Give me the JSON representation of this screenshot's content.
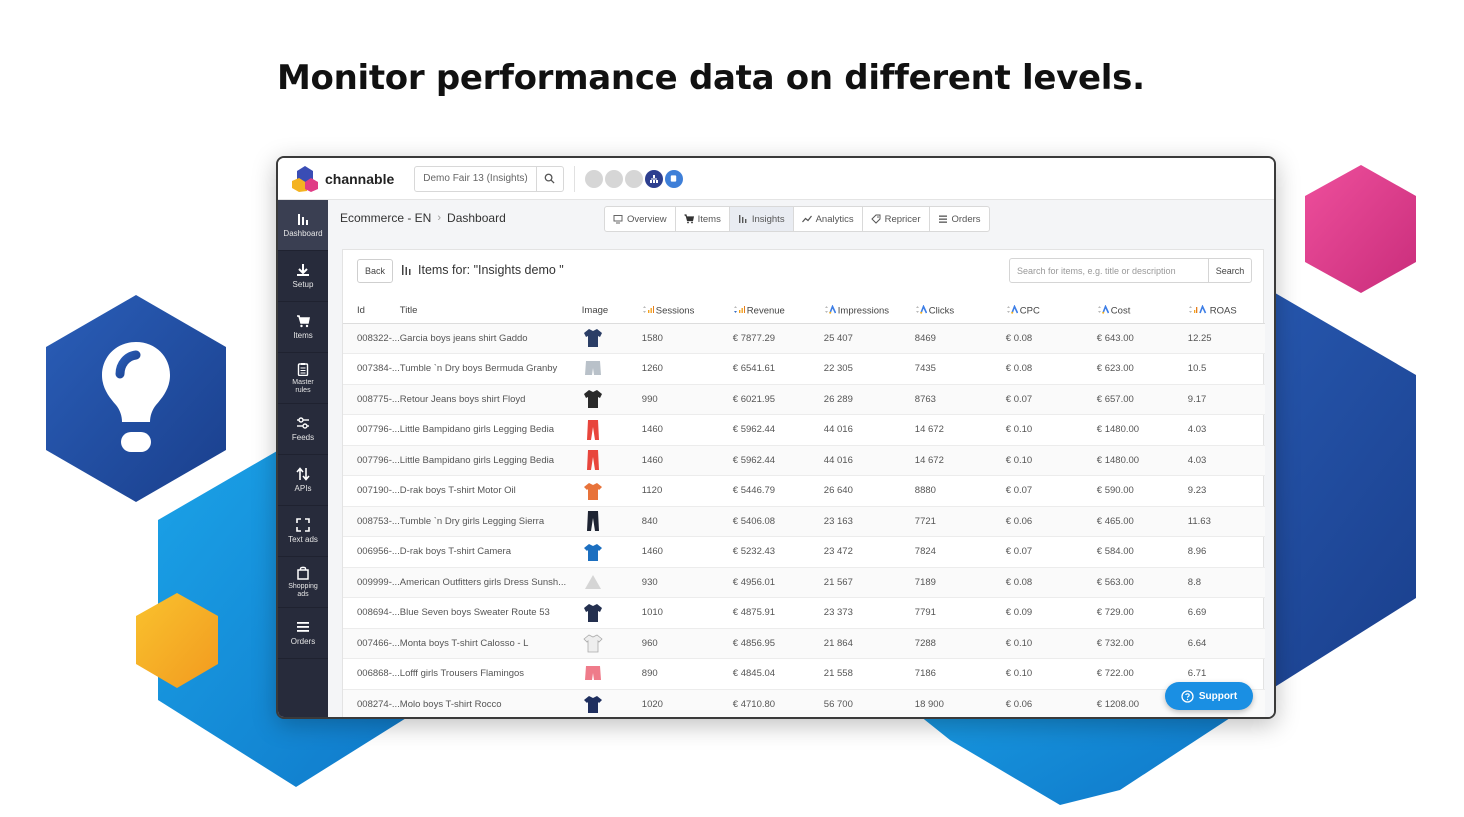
{
  "headline": "Monitor performance data on different levels.",
  "app": {
    "logo_text": "channable",
    "project_name": "Demo Fair 13 (Insights)"
  },
  "sidebar": {
    "items": [
      {
        "label": "Dashboard",
        "icon": "bar-chart-icon"
      },
      {
        "label": "Setup",
        "icon": "download-icon"
      },
      {
        "label": "Items",
        "icon": "cart-icon"
      },
      {
        "label": "Master rules",
        "icon": "clipboard-icon"
      },
      {
        "label": "Feeds",
        "icon": "sliders-icon"
      },
      {
        "label": "APIs",
        "icon": "arrows-updown-icon"
      },
      {
        "label": "Text ads",
        "icon": "expand-icon"
      },
      {
        "label": "Shopping ads",
        "icon": "bag-icon"
      },
      {
        "label": "Orders",
        "icon": "list-icon"
      }
    ]
  },
  "breadcrumb": {
    "project": "Ecommerce - EN",
    "page": "Dashboard"
  },
  "tabs": [
    "Overview",
    "Items",
    "Insights",
    "Analytics",
    "Repricer",
    "Orders"
  ],
  "active_tab": "Insights",
  "card": {
    "back_label": "Back",
    "title": "Items for: \"Insights demo \"",
    "search_placeholder": "Search for items, e.g. title or description",
    "search_label": "Search"
  },
  "table": {
    "headers": [
      "Id",
      "Title",
      "Image",
      "Sessions",
      "Revenue",
      "Impressions",
      "Clicks",
      "CPC",
      "Cost",
      "ROAS"
    ],
    "rows": [
      {
        "id": "008322-...",
        "title": "Garcia boys jeans shirt Gaddo",
        "image": "jacket",
        "color": "#2b3e66",
        "sessions": "1580",
        "revenue": "€ 7877.29",
        "impressions": "25 407",
        "clicks": "8469",
        "cpc": "€ 0.08",
        "cost": "€ 643.00",
        "roas": "12.25"
      },
      {
        "id": "007384-...",
        "title": "Tumble `n Dry boys Bermuda Granby",
        "image": "shorts",
        "color": "#b9c1c9",
        "sessions": "1260",
        "revenue": "€ 6541.61",
        "impressions": "22 305",
        "clicks": "7435",
        "cpc": "€ 0.08",
        "cost": "€ 623.00",
        "roas": "10.5"
      },
      {
        "id": "008775-...",
        "title": "Retour Jeans boys shirt Floyd",
        "image": "jacket",
        "color": "#2a2a2a",
        "sessions": "990",
        "revenue": "€ 6021.95",
        "impressions": "26 289",
        "clicks": "8763",
        "cpc": "€ 0.07",
        "cost": "€ 657.00",
        "roas": "9.17"
      },
      {
        "id": "007796-...",
        "title": "Little Bampidano girls Legging Bedia",
        "image": "trousers",
        "color": "#e8453c",
        "sessions": "1460",
        "revenue": "€ 5962.44",
        "impressions": "44 016",
        "clicks": "14 672",
        "cpc": "€ 0.10",
        "cost": "€ 1480.00",
        "roas": "4.03"
      },
      {
        "id": "007796-...",
        "title": "Little Bampidano girls Legging Bedia",
        "image": "trousers",
        "color": "#e8453c",
        "sessions": "1460",
        "revenue": "€ 5962.44",
        "impressions": "44 016",
        "clicks": "14 672",
        "cpc": "€ 0.10",
        "cost": "€ 1480.00",
        "roas": "4.03"
      },
      {
        "id": "007190-...",
        "title": "D-rak boys T-shirt Motor Oil",
        "image": "tshirt",
        "color": "#e8733a",
        "sessions": "1120",
        "revenue": "€ 5446.79",
        "impressions": "26 640",
        "clicks": "8880",
        "cpc": "€ 0.07",
        "cost": "€ 590.00",
        "roas": "9.23"
      },
      {
        "id": "008753-...",
        "title": "Tumble `n Dry girls Legging Sierra",
        "image": "trousers",
        "color": "#1e2433",
        "sessions": "840",
        "revenue": "€ 5406.08",
        "impressions": "23 163",
        "clicks": "7721",
        "cpc": "€ 0.06",
        "cost": "€ 465.00",
        "roas": "11.63"
      },
      {
        "id": "006956-...",
        "title": "D-rak boys T-shirt Camera",
        "image": "tshirt",
        "color": "#1c6fc0",
        "sessions": "1460",
        "revenue": "€ 5232.43",
        "impressions": "23 472",
        "clicks": "7824",
        "cpc": "€ 0.07",
        "cost": "€ 584.00",
        "roas": "8.96"
      },
      {
        "id": "009999-...",
        "title": "American Outfitters girls Dress Sunsh...",
        "image": "placeholder",
        "color": "#d5d5d5",
        "sessions": "930",
        "revenue": "€ 4956.01",
        "impressions": "21 567",
        "clicks": "7189",
        "cpc": "€ 0.08",
        "cost": "€ 563.00",
        "roas": "8.8"
      },
      {
        "id": "008694-...",
        "title": "Blue Seven boys Sweater Route 53",
        "image": "jacket",
        "color": "#24304f",
        "sessions": "1010",
        "revenue": "€ 4875.91",
        "impressions": "23 373",
        "clicks": "7791",
        "cpc": "€ 0.09",
        "cost": "€ 729.00",
        "roas": "6.69"
      },
      {
        "id": "007466-...",
        "title": "Monta boys T-shirt Calosso - L",
        "image": "tshirt",
        "color": "#eeeeee",
        "sessions": "960",
        "revenue": "€ 4856.95",
        "impressions": "21 864",
        "clicks": "7288",
        "cpc": "€ 0.10",
        "cost": "€ 732.00",
        "roas": "6.64"
      },
      {
        "id": "006868-...",
        "title": "Lofff girls Trousers Flamingos",
        "image": "shorts",
        "color": "#ef7b8a",
        "sessions": "890",
        "revenue": "€ 4845.04",
        "impressions": "21 558",
        "clicks": "7186",
        "cpc": "€ 0.10",
        "cost": "€ 722.00",
        "roas": "6.71"
      },
      {
        "id": "008274-...",
        "title": "Molo boys T-shirt Rocco",
        "image": "tshirt",
        "color": "#1f2f5f",
        "sessions": "1020",
        "revenue": "€ 4710.80",
        "impressions": "56 700",
        "clicks": "18 900",
        "cpc": "€ 0.06",
        "cost": "€ 1208.00",
        "roas": ""
      }
    ]
  },
  "support_label": "Support",
  "colors": {
    "sidebar": "#272b3b",
    "accent": "#1a8fe3",
    "hex_blue_dark": "#1f4ea3",
    "hex_blue_light": "#1591dc",
    "hex_pink": "#e23a8c",
    "hex_yellow": "#f5b324"
  }
}
